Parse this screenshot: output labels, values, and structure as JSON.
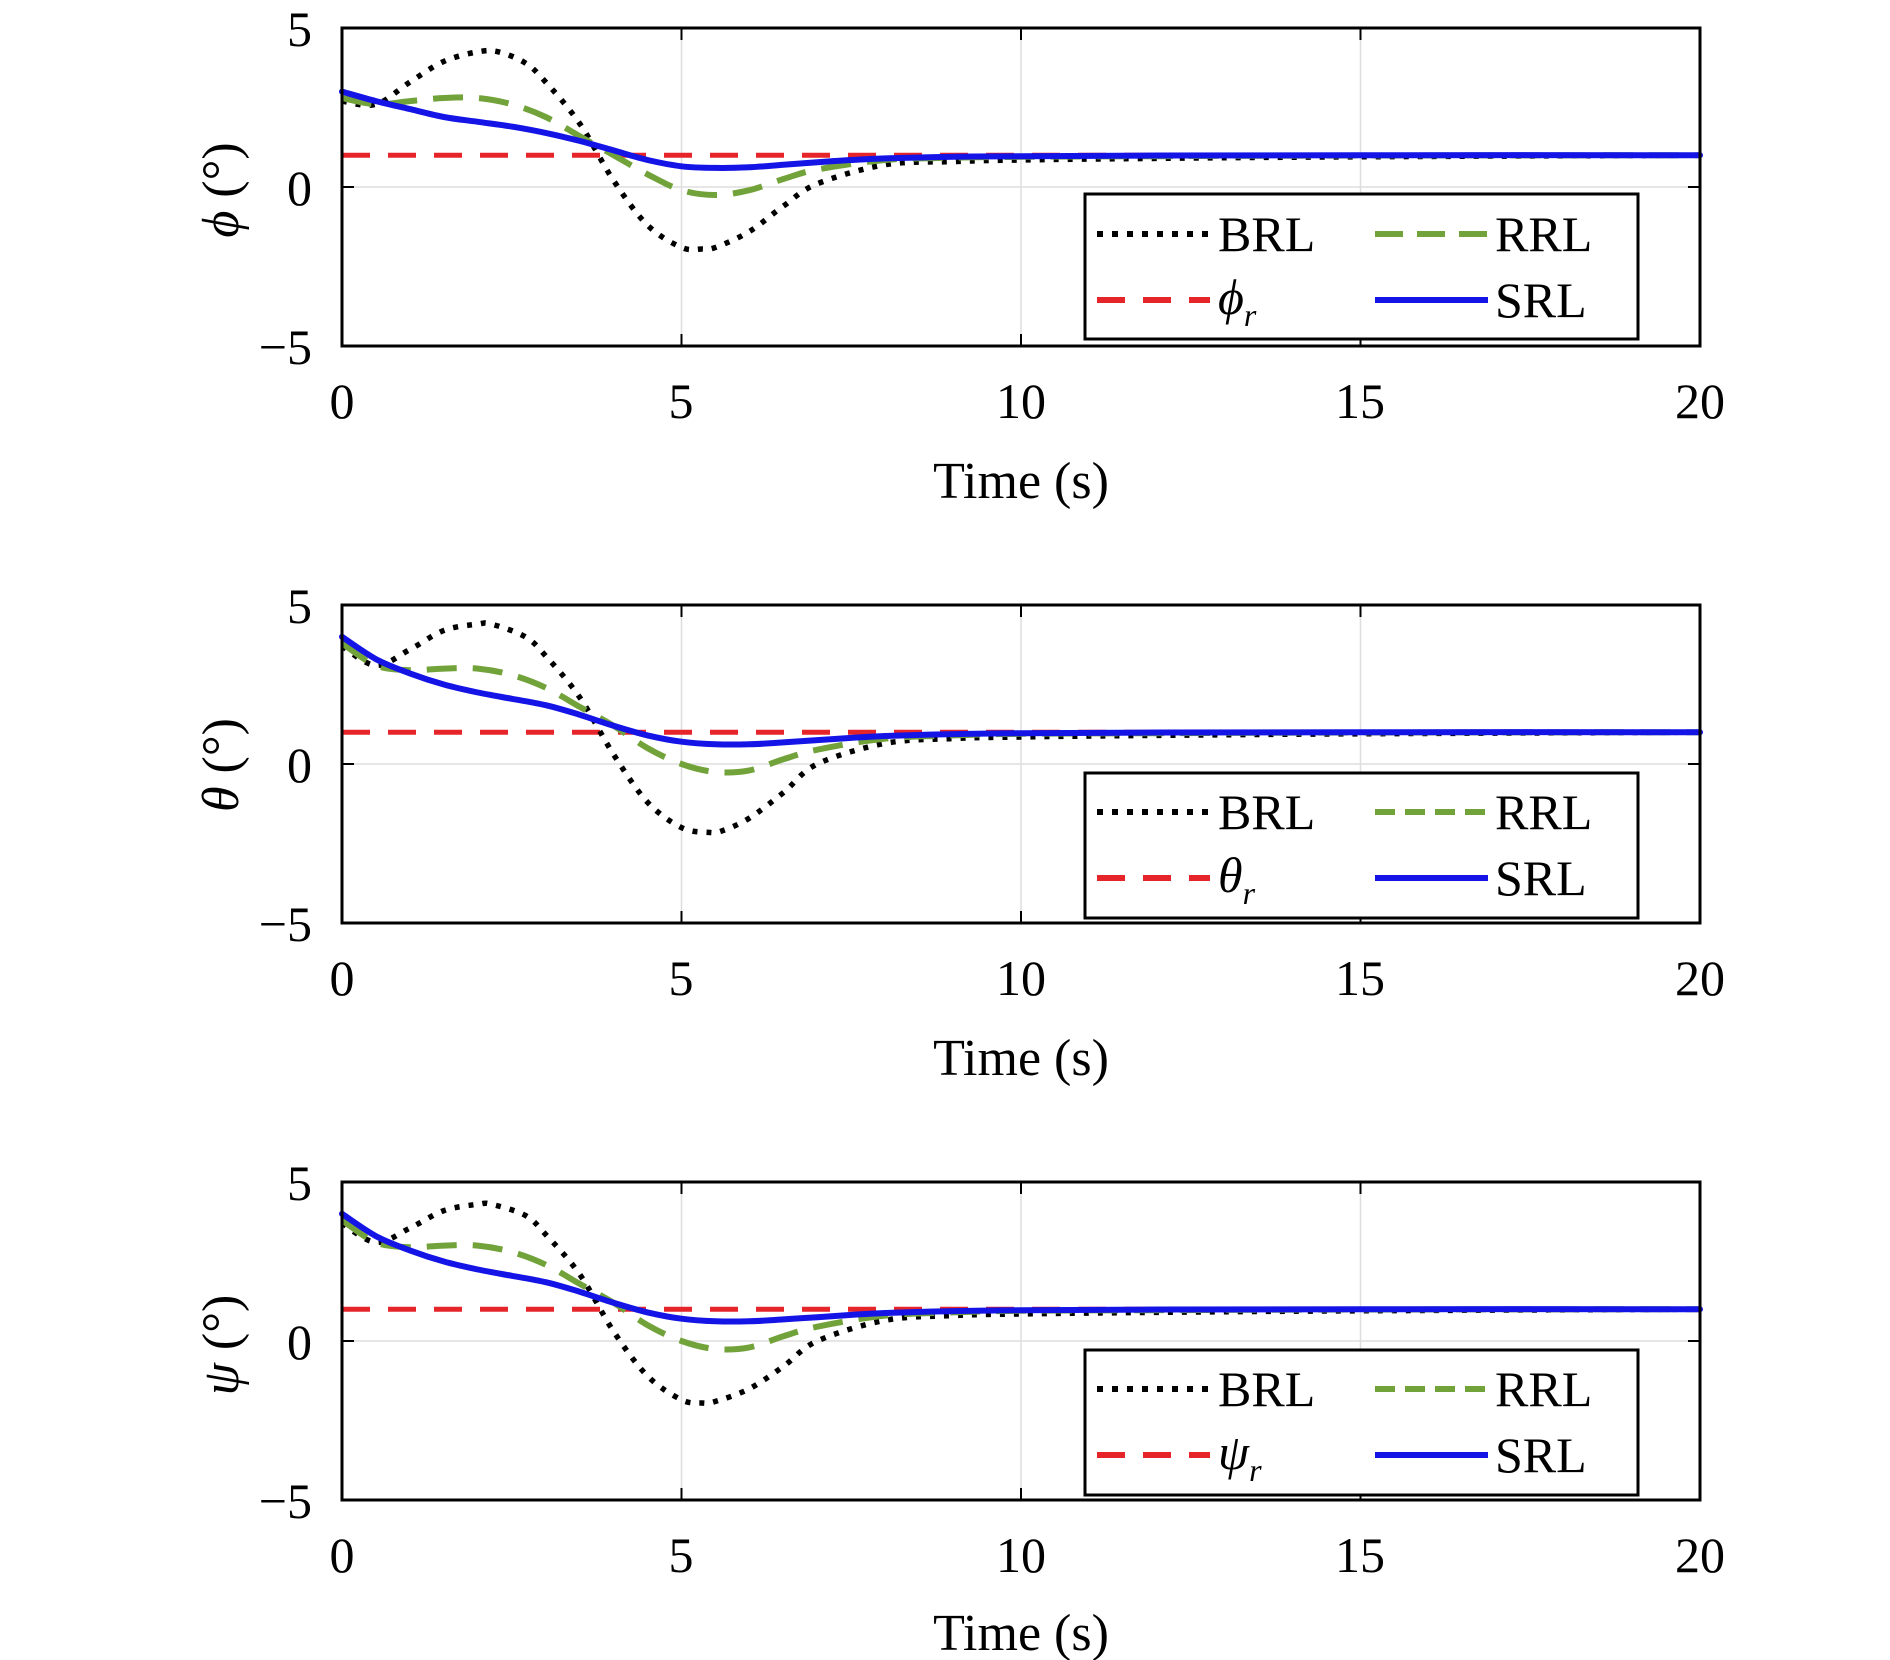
{
  "chart_data": [
    {
      "type": "line",
      "ylabel_symbol": "ϕ",
      "ylabel_unit": " (°)",
      "xlabel": "Time (s)",
      "xlim": [
        0,
        20
      ],
      "ylim": [
        -5,
        5
      ],
      "xticks": [
        "0",
        "5",
        "10",
        "15",
        "20"
      ],
      "yticks": [
        "5",
        "0",
        "−5"
      ],
      "grid": true,
      "legend_position": "bottom-right",
      "legend": {
        "brl": "BRL",
        "rrl": "RRL",
        "ref_symbol": "ϕ",
        "ref_sub": "r",
        "srl": "SRL"
      },
      "series": [
        {
          "name": "BRL",
          "style": "dotted",
          "color": "#000000",
          "x": [
            0,
            0.5,
            1,
            1.5,
            2,
            2.3,
            2.7,
            3,
            3.5,
            4,
            4.5,
            5,
            5.3,
            5.5,
            6,
            6.5,
            7,
            8,
            9,
            10,
            12,
            15,
            20
          ],
          "y": [
            2.7,
            2.6,
            3.3,
            3.95,
            4.25,
            4.25,
            3.9,
            3.3,
            2.0,
            0.2,
            -1.2,
            -1.9,
            -1.95,
            -1.9,
            -1.4,
            -0.6,
            0.1,
            0.7,
            0.8,
            0.85,
            0.9,
            0.95,
            1.0
          ]
        },
        {
          "name": "RRL",
          "style": "dashed",
          "color": "#72A23A",
          "x": [
            0,
            0.5,
            1,
            1.5,
            2,
            2.5,
            3,
            3.5,
            4,
            4.5,
            5,
            5.5,
            6,
            6.5,
            7,
            8,
            9,
            10,
            12,
            15,
            20
          ],
          "y": [
            2.8,
            2.6,
            2.7,
            2.8,
            2.8,
            2.6,
            2.2,
            1.6,
            1.0,
            0.4,
            -0.1,
            -0.25,
            -0.1,
            0.25,
            0.55,
            0.85,
            0.92,
            0.95,
            0.97,
            0.99,
            1.0
          ]
        },
        {
          "name": "ϕr",
          "style": "dashed-ref",
          "color": "#E5252A",
          "x": [
            0,
            20
          ],
          "y": [
            1,
            1
          ]
        },
        {
          "name": "SRL",
          "style": "solid",
          "color": "#1414E6",
          "x": [
            0,
            0.5,
            1,
            1.5,
            2,
            2.5,
            3,
            3.5,
            4,
            4.5,
            5,
            5.5,
            6,
            6.5,
            7,
            7.5,
            8,
            9,
            10,
            12,
            15,
            20
          ],
          "y": [
            3.0,
            2.7,
            2.45,
            2.2,
            2.05,
            1.9,
            1.7,
            1.45,
            1.15,
            0.85,
            0.65,
            0.6,
            0.62,
            0.7,
            0.78,
            0.85,
            0.9,
            0.95,
            0.97,
            0.99,
            1.0,
            1.0
          ]
        }
      ]
    },
    {
      "type": "line",
      "ylabel_symbol": "θ",
      "ylabel_unit": " (°)",
      "xlabel": "Time (s)",
      "xlim": [
        0,
        20
      ],
      "ylim": [
        -5,
        5
      ],
      "xticks": [
        "0",
        "5",
        "10",
        "15",
        "20"
      ],
      "yticks": [
        "5",
        "0",
        "−5"
      ],
      "grid": true,
      "legend_position": "bottom-right",
      "legend": {
        "brl": "BRL",
        "rrl": "RRL",
        "ref_symbol": "θ",
        "ref_sub": "r",
        "srl": "SRL"
      },
      "series": [
        {
          "name": "BRL",
          "style": "dotted",
          "color": "#000000",
          "x": [
            0,
            0.5,
            1,
            1.5,
            2,
            2.2,
            2.7,
            3,
            3.5,
            4,
            4.5,
            5,
            5.4,
            5.6,
            6,
            6.5,
            7,
            8,
            9,
            10,
            12,
            15,
            20
          ],
          "y": [
            3.7,
            3.1,
            3.6,
            4.2,
            4.4,
            4.4,
            4.0,
            3.4,
            2.1,
            0.3,
            -1.2,
            -2.0,
            -2.15,
            -2.1,
            -1.7,
            -0.9,
            0.0,
            0.65,
            0.8,
            0.85,
            0.9,
            0.95,
            1.0
          ]
        },
        {
          "name": "RRL",
          "style": "dashed",
          "color": "#72A23A",
          "x": [
            0,
            0.5,
            1,
            1.5,
            2,
            2.5,
            3,
            3.5,
            4,
            4.5,
            5,
            5.5,
            6,
            6.5,
            7,
            8,
            9,
            10,
            12,
            15,
            20
          ],
          "y": [
            3.8,
            3.1,
            2.95,
            3.0,
            3.0,
            2.8,
            2.4,
            1.8,
            1.2,
            0.5,
            0.0,
            -0.25,
            -0.2,
            0.15,
            0.45,
            0.8,
            0.9,
            0.95,
            0.97,
            0.99,
            1.0
          ]
        },
        {
          "name": "θr",
          "style": "dashed-ref",
          "color": "#E5252A",
          "x": [
            0,
            20
          ],
          "y": [
            1,
            1
          ]
        },
        {
          "name": "SRL",
          "style": "solid",
          "color": "#1414E6",
          "x": [
            0,
            0.5,
            1,
            1.5,
            2,
            2.5,
            3,
            3.5,
            4,
            4.5,
            5,
            5.5,
            6,
            6.5,
            7,
            7.5,
            8,
            9,
            10,
            12,
            15,
            20
          ],
          "y": [
            4.0,
            3.3,
            2.85,
            2.5,
            2.25,
            2.05,
            1.85,
            1.55,
            1.2,
            0.9,
            0.7,
            0.62,
            0.62,
            0.68,
            0.75,
            0.82,
            0.88,
            0.94,
            0.97,
            0.99,
            1.0,
            1.0
          ]
        }
      ]
    },
    {
      "type": "line",
      "ylabel_symbol": "ψ",
      "ylabel_unit": " (°)",
      "xlabel": "Time (s)",
      "xlim": [
        0,
        20
      ],
      "ylim": [
        -5,
        5
      ],
      "xticks": [
        "0",
        "5",
        "10",
        "15",
        "20"
      ],
      "yticks": [
        "5",
        "0",
        "−5"
      ],
      "grid": true,
      "legend_position": "bottom-right",
      "legend": {
        "brl": "BRL",
        "rrl": "RRL",
        "ref_symbol": "ψ",
        "ref_sub": "r",
        "srl": "SRL"
      },
      "series": [
        {
          "name": "BRL",
          "style": "dotted",
          "color": "#000000",
          "x": [
            0,
            0.5,
            1,
            1.5,
            2,
            2.2,
            2.7,
            3,
            3.5,
            4,
            4.5,
            5,
            5.3,
            5.5,
            6,
            6.5,
            7,
            8,
            9,
            10,
            12,
            15,
            20
          ],
          "y": [
            3.7,
            3.1,
            3.55,
            4.1,
            4.3,
            4.3,
            3.95,
            3.35,
            2.1,
            0.3,
            -1.1,
            -1.85,
            -1.95,
            -1.9,
            -1.5,
            -0.8,
            0.0,
            0.65,
            0.8,
            0.85,
            0.9,
            0.95,
            1.0
          ]
        },
        {
          "name": "RRL",
          "style": "dashed",
          "color": "#72A23A",
          "x": [
            0,
            0.5,
            1,
            1.5,
            2,
            2.5,
            3,
            3.5,
            4,
            4.5,
            5,
            5.5,
            6,
            6.5,
            7,
            8,
            9,
            10,
            12,
            15,
            20
          ],
          "y": [
            3.8,
            3.1,
            2.95,
            3.0,
            3.0,
            2.8,
            2.4,
            1.8,
            1.2,
            0.5,
            0.0,
            -0.25,
            -0.2,
            0.15,
            0.45,
            0.8,
            0.9,
            0.95,
            0.97,
            0.99,
            1.0
          ]
        },
        {
          "name": "ψr",
          "style": "dashed-ref",
          "color": "#E5252A",
          "x": [
            0,
            20
          ],
          "y": [
            1,
            1
          ]
        },
        {
          "name": "SRL",
          "style": "solid",
          "color": "#1414E6",
          "x": [
            0,
            0.5,
            1,
            1.5,
            2,
            2.5,
            3,
            3.5,
            4,
            4.5,
            5,
            5.5,
            6,
            6.5,
            7,
            7.5,
            8,
            9,
            10,
            12,
            15,
            20
          ],
          "y": [
            4.0,
            3.3,
            2.85,
            2.5,
            2.25,
            2.05,
            1.85,
            1.55,
            1.2,
            0.9,
            0.7,
            0.62,
            0.62,
            0.68,
            0.75,
            0.82,
            0.88,
            0.94,
            0.97,
            0.99,
            1.0,
            1.0
          ]
        }
      ]
    }
  ]
}
